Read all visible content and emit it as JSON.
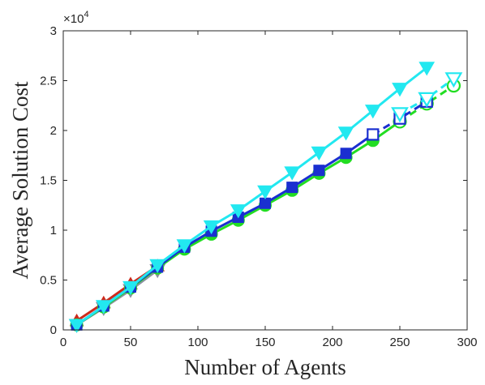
{
  "chart_data": {
    "type": "line",
    "title": "",
    "xlabel": "Number of Agents",
    "ylabel": "Average Solution Cost",
    "xlim": [
      0,
      300
    ],
    "ylim": [
      0,
      30000
    ],
    "xticks": [
      0,
      50,
      100,
      150,
      200,
      250,
      300
    ],
    "yticks": [
      0,
      5000,
      10000,
      15000,
      20000,
      25000,
      30000
    ],
    "x_tick_labels": [
      "0",
      "50",
      "100",
      "150",
      "200",
      "250",
      "300"
    ],
    "y_tick_labels": [
      "0",
      "0.5",
      "1",
      "1.5",
      "2",
      "2.5",
      "3"
    ],
    "y_exponent_base": "×10",
    "y_exponent_power": "4",
    "grid": false,
    "legend": "none",
    "series": [
      {
        "color": "#cc2b1d",
        "marker": "triangle-up",
        "filled": true,
        "dash": false,
        "x": [
          10,
          30,
          50,
          70
        ],
        "y": [
          900,
          2700,
          4600,
          6400
        ]
      },
      {
        "color": "#8a8fa0",
        "marker": "triangle-down",
        "filled": true,
        "dash": false,
        "x": [
          10,
          30,
          50,
          70
        ],
        "y": [
          500,
          2200,
          4000,
          6000
        ]
      },
      {
        "color": "#22dd22",
        "marker": "circle",
        "filled": true,
        "dash": false,
        "x": [
          10,
          30,
          50,
          70,
          90,
          110,
          130,
          150,
          170,
          190,
          210,
          230,
          250
        ],
        "y": [
          500,
          2300,
          4200,
          6200,
          8100,
          9600,
          11000,
          12500,
          14000,
          15700,
          17300,
          19000,
          20900
        ]
      },
      {
        "color": "#22dd22",
        "marker": "circle",
        "filled": false,
        "dash": true,
        "x": [
          250,
          270,
          290
        ],
        "y": [
          20900,
          22700,
          24500
        ]
      },
      {
        "color": "#1a2fd0",
        "marker": "square",
        "filled": true,
        "dash": false,
        "x": [
          10,
          30,
          50,
          70,
          90,
          110,
          130,
          150,
          170,
          190,
          210,
          230
        ],
        "y": [
          500,
          2400,
          4300,
          6300,
          8300,
          9900,
          11300,
          12700,
          14300,
          16000,
          17700,
          19600
        ]
      },
      {
        "color": "#1a2fd0",
        "marker": "square",
        "filled": false,
        "dash": true,
        "x": [
          230,
          250,
          270
        ],
        "y": [
          19600,
          21200,
          22900
        ]
      },
      {
        "color": "#22e8f0",
        "marker": "triangle-down",
        "filled": true,
        "dash": false,
        "x": [
          10,
          30,
          50,
          70,
          90,
          110,
          130,
          150,
          170,
          190,
          210,
          230,
          250,
          270
        ],
        "y": [
          500,
          2400,
          4300,
          6500,
          8500,
          10400,
          12000,
          13900,
          15800,
          17800,
          19800,
          22000,
          24200,
          26300
        ]
      },
      {
        "color": "#22e8f0",
        "marker": "triangle-down",
        "filled": false,
        "dash": true,
        "x": [
          250,
          270,
          290
        ],
        "y": [
          21700,
          23200,
          25200
        ]
      }
    ]
  }
}
